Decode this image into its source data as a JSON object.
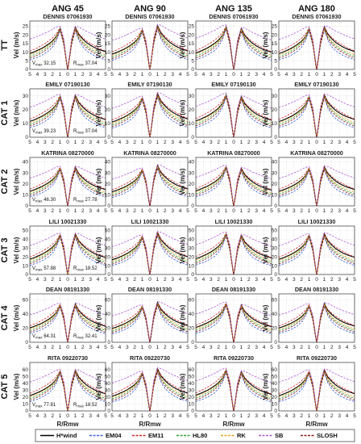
{
  "figure": {
    "columns": [
      "ANG 45",
      "ANG 90",
      "ANG 135",
      "ANG 180"
    ],
    "rows": [
      "TT",
      "CAT 1",
      "CAT 2",
      "CAT 3",
      "CAT 4",
      "CAT 5"
    ],
    "ylabel": "Vel (m/s)",
    "xlabel": "R/Rmw",
    "x_ticks": [
      "5",
      "4",
      "3",
      "2",
      "1",
      "0",
      "1",
      "2",
      "3",
      "4",
      "5"
    ]
  },
  "legend": [
    {
      "name": "H*wind",
      "color": "#000000",
      "dash": "solid"
    },
    {
      "name": "EM04",
      "color": "#3b5fd9",
      "dash": "dashed"
    },
    {
      "name": "EM11",
      "color": "#d62728",
      "dash": "dashed"
    },
    {
      "name": "HL80",
      "color": "#2ca02c",
      "dash": "dashed"
    },
    {
      "name": "RK",
      "color": "#e8a317",
      "dash": "dashed"
    },
    {
      "name": "SB",
      "color": "#b05ad6",
      "dash": "dashed"
    },
    {
      "name": "SLOSH",
      "color": "#8b1a1a",
      "dash": "dashed"
    }
  ],
  "chart_data": {
    "type": "line",
    "x": [
      -5,
      -4.5,
      -4,
      -3.5,
      -3,
      -2.5,
      -2,
      -1.5,
      -1,
      -0.5,
      -0.1,
      0,
      0.1,
      0.5,
      1,
      1.5,
      2,
      2.5,
      3,
      3.5,
      4,
      4.5,
      5
    ],
    "xlim": [
      -5,
      5
    ],
    "storms": [
      {
        "row": "TT",
        "name": "DENNIS 07061930",
        "vmax": "32.15",
        "rmax": "37.04",
        "ylim": [
          0,
          28
        ],
        "yticks": [
          0,
          5,
          10,
          15,
          20,
          25
        ],
        "vpeak": 25
      },
      {
        "row": "CAT 1",
        "name": "EMILY 07190130",
        "vmax": "39.23",
        "rmax": "37.04",
        "ylim": [
          0,
          35
        ],
        "yticks": [
          0,
          10,
          20,
          30
        ],
        "vpeak": 31
      },
      {
        "row": "CAT 2",
        "name": "KATRINA 08270000",
        "vmax": "46.30",
        "rmax": "27.78",
        "ylim": [
          0,
          44
        ],
        "yticks": [
          0,
          10,
          20,
          30,
          40
        ],
        "vpeak": 36
      },
      {
        "row": "CAT 3",
        "name": "LILI 10021330",
        "vmax": "57.88",
        "rmax": "18.52",
        "ylim": [
          0,
          55
        ],
        "yticks": [
          0,
          10,
          20,
          30,
          40,
          50
        ],
        "vpeak": 47
      },
      {
        "row": "CAT 4",
        "name": "DEAN 08191330",
        "vmax": "64.31",
        "rmax": "32.41",
        "ylim": [
          0,
          68
        ],
        "yticks": [
          0,
          20,
          40,
          60
        ],
        "vpeak": 55
      },
      {
        "row": "CAT 5",
        "name": "RITA 09220730",
        "vmax": "77.81",
        "rmax": "18.52",
        "ylim": [
          0,
          70
        ],
        "yticks": [
          0,
          10,
          20,
          30,
          40,
          50,
          60
        ],
        "vpeak": 60
      }
    ],
    "model_scale": {
      "H*wind": [
        0.37,
        0.4,
        0.44,
        0.48,
        0.53,
        0.59,
        0.66,
        0.76,
        0.94,
        0.62,
        0.1,
        0,
        0.1,
        0.62,
        0.98,
        0.8,
        0.7,
        0.62,
        0.56,
        0.51,
        0.47,
        0.44,
        0.41
      ],
      "EM04": [
        0.22,
        0.25,
        0.28,
        0.32,
        0.37,
        0.43,
        0.52,
        0.66,
        0.9,
        0.55,
        0.08,
        0,
        0.08,
        0.55,
        0.9,
        0.66,
        0.52,
        0.43,
        0.37,
        0.32,
        0.28,
        0.25,
        0.22
      ],
      "EM11": [
        0.42,
        0.46,
        0.5,
        0.55,
        0.6,
        0.66,
        0.73,
        0.82,
        0.97,
        0.64,
        0.1,
        0,
        0.1,
        0.64,
        0.97,
        0.82,
        0.73,
        0.66,
        0.6,
        0.55,
        0.5,
        0.46,
        0.42
      ],
      "HL80": [
        0.3,
        0.33,
        0.37,
        0.42,
        0.47,
        0.54,
        0.62,
        0.74,
        0.95,
        0.6,
        0.09,
        0,
        0.09,
        0.6,
        0.95,
        0.74,
        0.62,
        0.54,
        0.47,
        0.42,
        0.37,
        0.33,
        0.3
      ],
      "RK": [
        0.34,
        0.37,
        0.41,
        0.46,
        0.51,
        0.57,
        0.64,
        0.75,
        0.93,
        0.59,
        0.09,
        0,
        0.09,
        0.59,
        0.93,
        0.75,
        0.64,
        0.57,
        0.51,
        0.46,
        0.41,
        0.37,
        0.34
      ],
      "SB": [
        0.7,
        0.73,
        0.76,
        0.8,
        0.84,
        0.88,
        0.93,
        0.98,
        1.0,
        0.7,
        0.12,
        0,
        0.12,
        0.7,
        1.0,
        0.98,
        0.93,
        0.88,
        0.84,
        0.8,
        0.76,
        0.73,
        0.7
      ],
      "SLOSH": [
        0.26,
        0.29,
        0.33,
        0.38,
        0.43,
        0.5,
        0.58,
        0.7,
        0.92,
        0.57,
        0.08,
        0,
        0.08,
        0.57,
        0.92,
        0.7,
        0.58,
        0.5,
        0.43,
        0.38,
        0.33,
        0.29,
        0.26
      ]
    }
  }
}
